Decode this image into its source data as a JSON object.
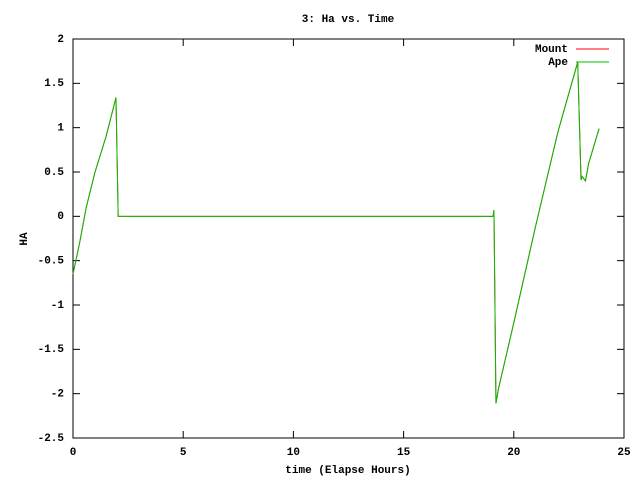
{
  "chart_data": {
    "type": "line",
    "title": "3: Ha vs. Time",
    "xlabel": "time (Elapse Hours)",
    "ylabel": "HA",
    "x": [
      0,
      0.3,
      0.6,
      1.0,
      1.5,
      1.95,
      2.05,
      10,
      19.06,
      19.1,
      19.19,
      19.3,
      20,
      21,
      22,
      22.9,
      23.05,
      23.1,
      23.25,
      23.4,
      23.87
    ],
    "series": [
      {
        "name": "Mount",
        "color": "#ff0000",
        "values": [
          -0.65,
          -0.3,
          0.1,
          0.5,
          0.9,
          1.34,
          0,
          0,
          0,
          0.07,
          -2.11,
          -1.95,
          -1.2,
          -0.1,
          0.95,
          1.74,
          0.41,
          0.45,
          0.4,
          0.6,
          0.99
        ]
      },
      {
        "name": "Ape",
        "color": "#00c000",
        "values": [
          -0.65,
          -0.3,
          0.1,
          0.5,
          0.9,
          1.34,
          0,
          0,
          0,
          0.07,
          -2.11,
          -1.95,
          -1.2,
          -0.1,
          0.95,
          1.74,
          0.41,
          0.45,
          0.4,
          0.6,
          0.99
        ]
      }
    ],
    "xlim": [
      0,
      25
    ],
    "xticks": [
      0,
      5,
      10,
      15,
      20,
      25
    ],
    "ylim": [
      -2.5,
      2
    ],
    "yticks": [
      2,
      1.5,
      1,
      0.5,
      0,
      -0.5,
      -1,
      -1.5,
      -2,
      -2.5
    ],
    "legend": "top-right"
  }
}
